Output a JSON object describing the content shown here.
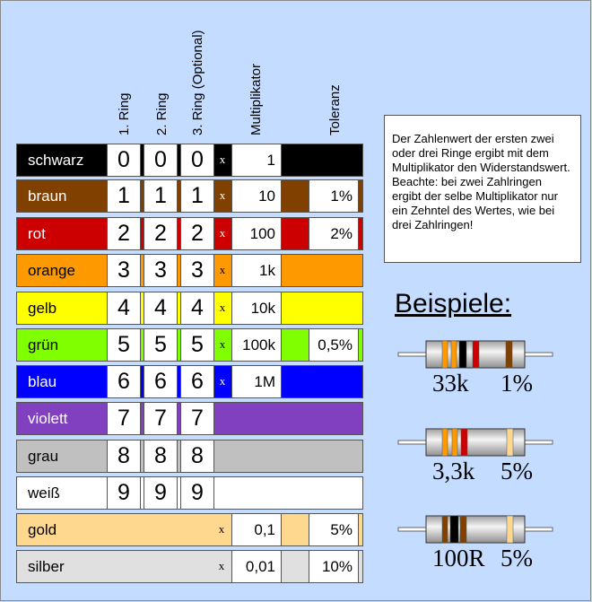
{
  "headers": [
    "1. Ring",
    "2. Ring",
    "3. Ring (Optional)",
    "Multiplikator",
    "Toleranz"
  ],
  "rows": [
    {
      "name": "schwarz",
      "color": "#000000",
      "text": "#ffffff",
      "digits": [
        "0",
        "0",
        "0"
      ],
      "mult": "1",
      "tol": ""
    },
    {
      "name": "braun",
      "color": "#804000",
      "text": "#ffffff",
      "digits": [
        "1",
        "1",
        "1"
      ],
      "mult": "10",
      "tol": "1%"
    },
    {
      "name": "rot",
      "color": "#cc0000",
      "text": "#ffffff",
      "digits": [
        "2",
        "2",
        "2"
      ],
      "mult": "100",
      "tol": "2%"
    },
    {
      "name": "orange",
      "color": "#ff9900",
      "text": "#000000",
      "digits": [
        "3",
        "3",
        "3"
      ],
      "mult": "1k",
      "tol": ""
    },
    {
      "name": "gelb",
      "color": "#ffff00",
      "text": "#000000",
      "digits": [
        "4",
        "4",
        "4"
      ],
      "mult": "10k",
      "tol": ""
    },
    {
      "name": "grün",
      "color": "#80ff00",
      "text": "#000000",
      "digits": [
        "5",
        "5",
        "5"
      ],
      "mult": "100k",
      "tol": "0,5%"
    },
    {
      "name": "blau",
      "color": "#0000ff",
      "text": "#ffffff",
      "digits": [
        "6",
        "6",
        "6"
      ],
      "mult": "1M",
      "tol": ""
    },
    {
      "name": "violett",
      "color": "#8040c0",
      "text": "#ffffff",
      "digits": [
        "7",
        "7",
        "7"
      ]
    },
    {
      "name": "grau",
      "color": "#c0c0c0",
      "text": "#000000",
      "digits": [
        "8",
        "8",
        "8"
      ]
    },
    {
      "name": "weiß",
      "color": "#ffffff",
      "text": "#000000",
      "digits": [
        "9",
        "9",
        "9"
      ]
    },
    {
      "name": "gold",
      "color": "#ffd890",
      "text": "#000000",
      "mult": "0,1",
      "tol": "5%"
    },
    {
      "name": "silber",
      "color": "#e0e0e0",
      "text": "#000000",
      "mult": "0,01",
      "tol": "10%"
    }
  ],
  "x_symbol": "x",
  "info": "Der Zahlenwert der ersten zwei oder drei Ringe ergibt mit dem Multiplikator den Widerstandswert. Beachte: bei zwei Zahlringen ergibt der selbe Multiplikator nur ein Zehntel des Wertes, wie bei drei Zahlringen!",
  "beispiele": "Beispiele:",
  "examples": [
    {
      "value": "33k",
      "tol": "1%",
      "bands": [
        "#ff9900",
        "#ff9900",
        "#000000",
        "#cc0000",
        "#804000"
      ]
    },
    {
      "value": "3,3k",
      "tol": "5%",
      "bands": [
        "#ff9900",
        "#ff9900",
        "#cc0000",
        "#ffd890"
      ]
    },
    {
      "value": "100R",
      "tol": "5%",
      "bands": [
        "#804000",
        "#000000",
        "#804000",
        "#ffd890"
      ]
    }
  ]
}
